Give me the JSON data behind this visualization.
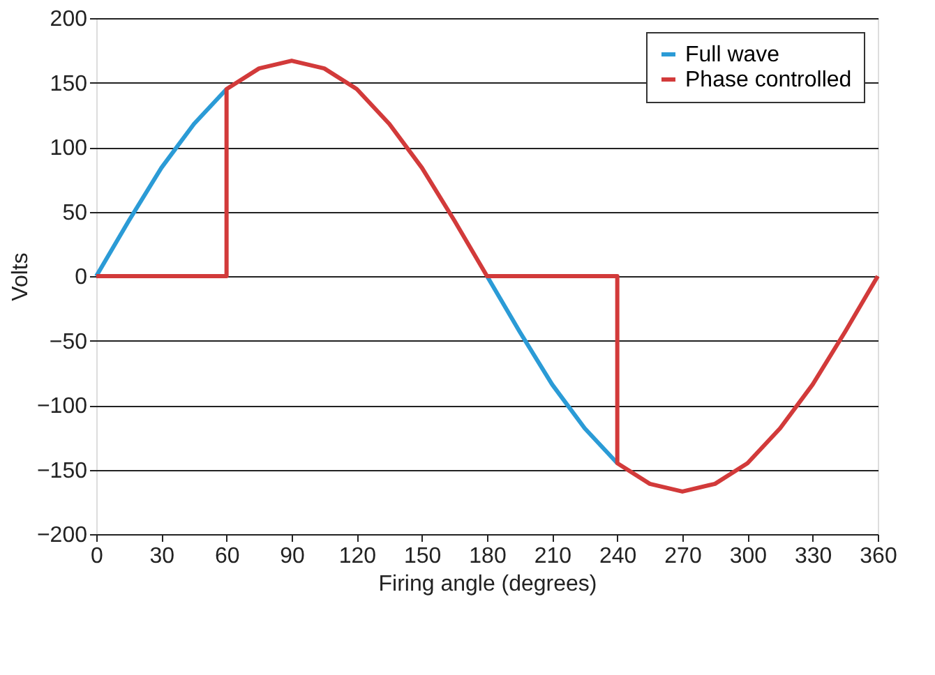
{
  "chart_data": {
    "type": "line",
    "xlabel": "Firing angle (degrees)",
    "ylabel": "Volts",
    "series": [
      {
        "name": "Full wave",
        "color": "#2b9bd6",
        "x": [
          0,
          15,
          30,
          45,
          60,
          75,
          90,
          105,
          120,
          135,
          150,
          165,
          180,
          195,
          210,
          225,
          240
        ],
        "values": [
          0,
          43,
          84,
          118,
          145,
          null,
          null,
          null,
          null,
          null,
          null,
          null,
          0,
          -43,
          -84,
          -118,
          -145
        ]
      },
      {
        "name": "Phase controlled",
        "color": "#d23a3a",
        "x": [
          0,
          60,
          60,
          75,
          90,
          105,
          120,
          135,
          150,
          165,
          180,
          240,
          240,
          255,
          270,
          285,
          300,
          315,
          330,
          345,
          360
        ],
        "values": [
          0,
          0,
          145,
          161,
          167,
          161,
          145,
          118,
          84,
          43,
          0,
          0,
          -145,
          -161,
          -167,
          -161,
          -145,
          -118,
          -84,
          -43,
          0
        ]
      }
    ],
    "xlim": [
      0,
      360
    ],
    "xticks": [
      0,
      30,
      60,
      90,
      120,
      150,
      180,
      210,
      240,
      270,
      300,
      330,
      360
    ],
    "ylim": [
      -200,
      200
    ],
    "yticks": [
      -200,
      -150,
      -100,
      -50,
      0,
      50,
      100,
      150,
      200
    ],
    "grid": "y",
    "legend": "top right",
    "marker": "none",
    "line_style": "solid"
  }
}
